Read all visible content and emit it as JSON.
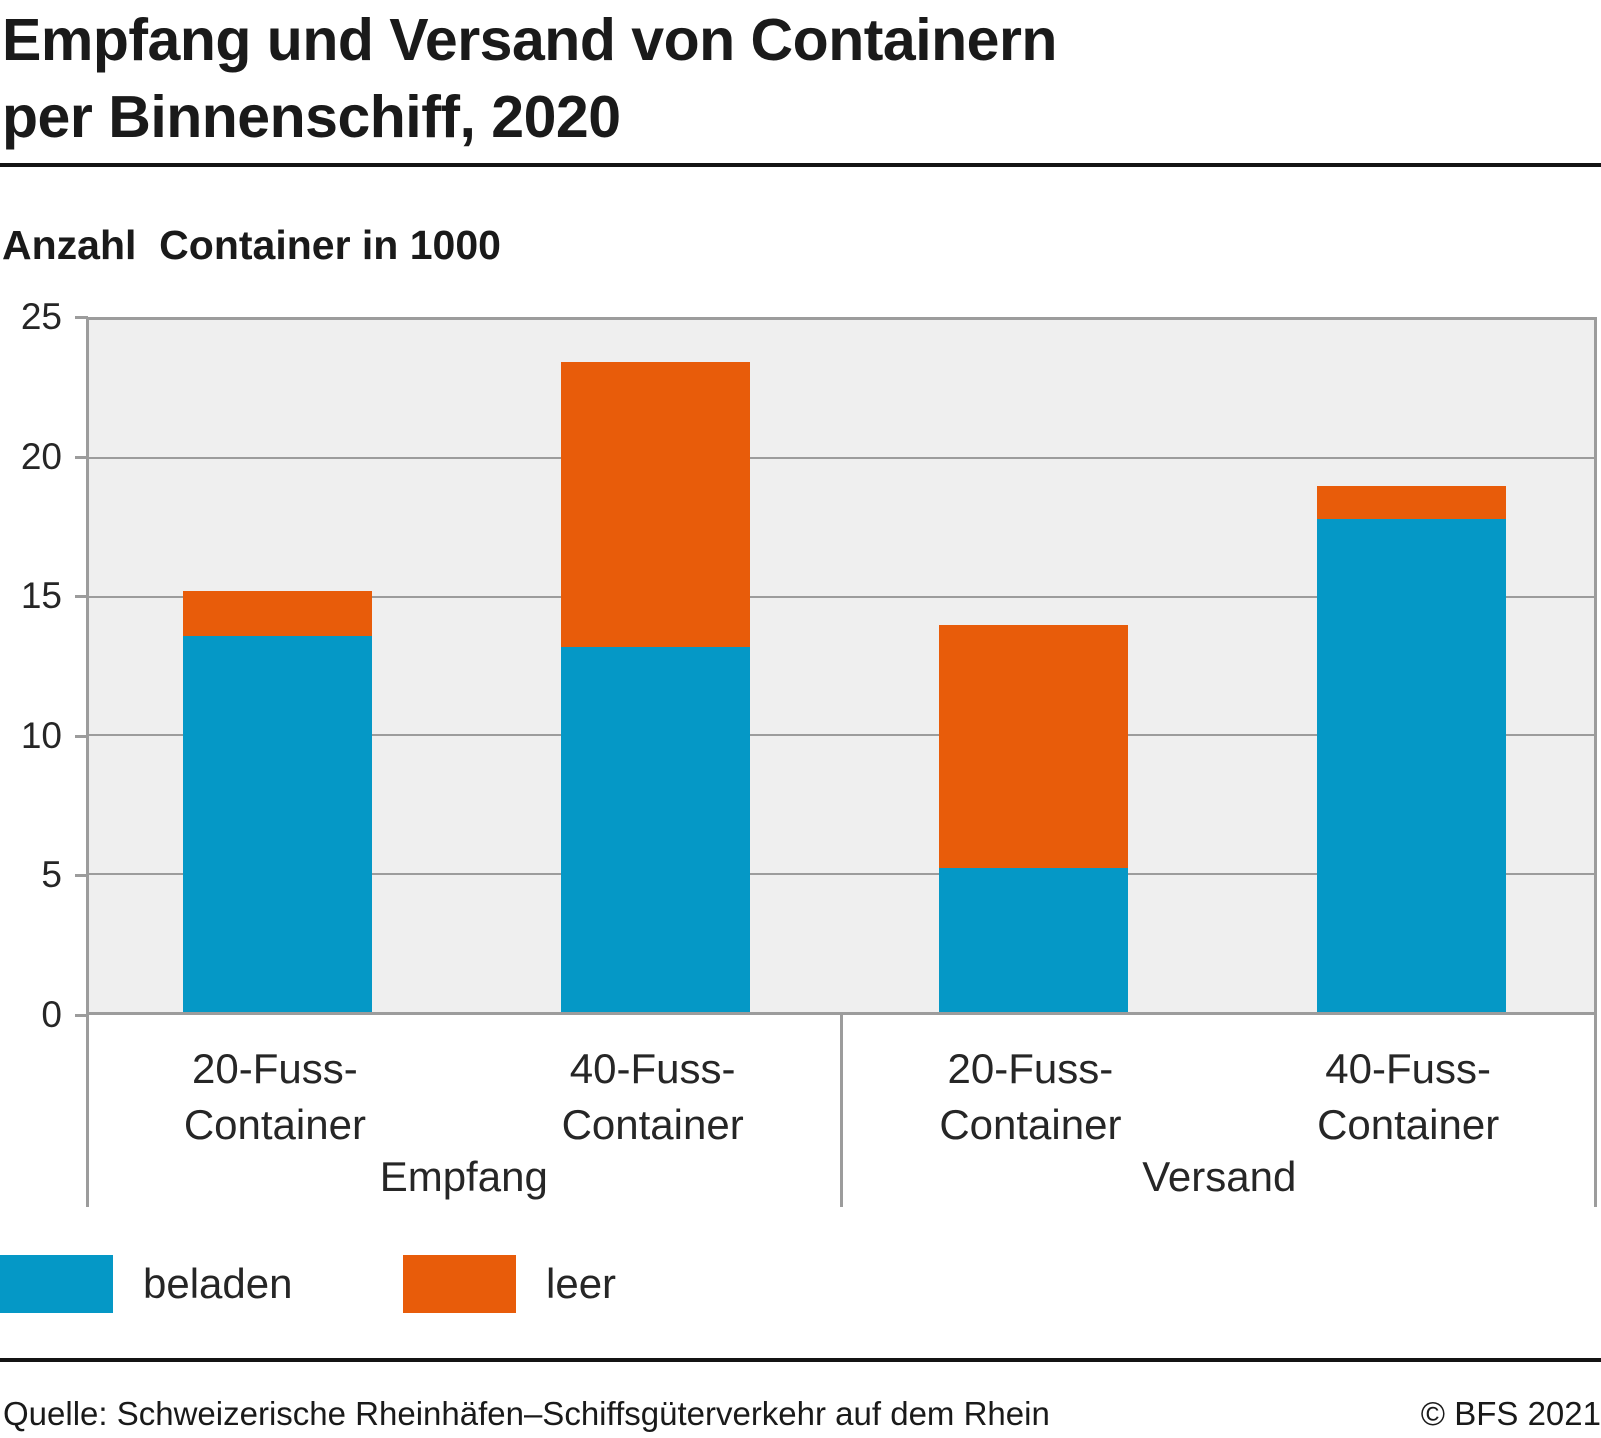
{
  "page": {
    "title_line1": "Empfang und Versand von Containern",
    "title_line2": "per Binnenschiff, 2020",
    "subtitle": "Anzahl  Container in 1000",
    "footer_source": "Quelle: Schweizerische Rheinhäfen–Schiffsgüterverkehr auf dem Rhein",
    "footer_copyright": "© BFS 2021"
  },
  "chart_data": {
    "type": "bar",
    "stacked": true,
    "title": "Empfang und Versand von Containern per Binnenschiff, 2020",
    "ylabel": "Anzahl Container in 1000",
    "xlabel": "",
    "categories": [
      "20-Fuss-\nContainer",
      "40-Fuss-\nContainer",
      "20-Fuss-\nContainer",
      "40-Fuss-\nContainer"
    ],
    "groups": [
      {
        "label": "Empfang",
        "categories": [
          0,
          1
        ]
      },
      {
        "label": "Versand",
        "categories": [
          2,
          3
        ]
      }
    ],
    "series": [
      {
        "name": "beladen",
        "color": "#0598c6",
        "values": [
          13.6,
          13.2,
          5.2,
          17.8
        ]
      },
      {
        "name": "leer",
        "color": "#e85c0a",
        "values": [
          1.6,
          10.3,
          8.8,
          1.2
        ]
      }
    ],
    "ylim": [
      0,
      25
    ],
    "yticks": [
      0,
      5,
      10,
      15,
      20,
      25
    ],
    "grid": true,
    "legend_position": "bottom",
    "plot_bg": "#efefef",
    "grid_color": "#9c9c9c"
  }
}
